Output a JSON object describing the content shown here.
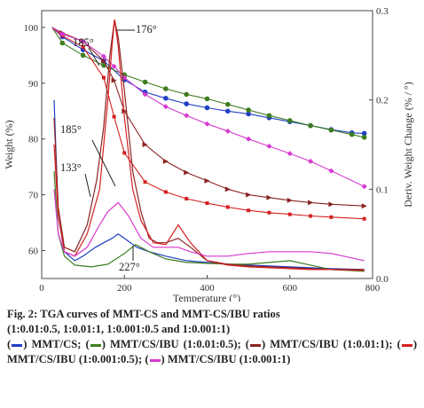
{
  "chart_data": {
    "type": "line",
    "xlabel": "Temperature (°)",
    "ylabel": "Weight (%)",
    "y2label": "Deriv. Weight Change (% / °)",
    "xlim": [
      0,
      800
    ],
    "ylim": [
      55,
      103
    ],
    "y2lim": [
      0,
      0.3
    ],
    "xticks": [
      "0",
      "200",
      "400",
      "600",
      "800"
    ],
    "yticks": [
      "60",
      "70",
      "80",
      "90",
      "100"
    ],
    "y2ticks": [
      "0.0",
      "0.1",
      "0.2",
      "0.3"
    ],
    "grid": false,
    "annotations": [
      "185°",
      "176°",
      "185°",
      "133°",
      "227°"
    ],
    "series": [
      {
        "color": "#1f3fc4",
        "axis": "weight",
        "marker": "circle",
        "x": [
          25,
          50,
          100,
          150,
          200,
          250,
          300,
          350,
          400,
          450,
          500,
          550,
          600,
          650,
          700,
          750,
          780
        ],
        "values": [
          100,
          98.3,
          96,
          94,
          90.6,
          88.4,
          87.3,
          86.3,
          85.6,
          85,
          84.5,
          83.8,
          83.1,
          82.4,
          81.7,
          81.1,
          81
        ]
      },
      {
        "color": "#3d7d1e",
        "axis": "weight",
        "marker": "circle",
        "x": [
          25,
          50,
          100,
          150,
          200,
          250,
          300,
          350,
          400,
          450,
          500,
          550,
          600,
          650,
          700,
          750,
          780
        ],
        "values": [
          100,
          97.2,
          95,
          93.2,
          91.5,
          90.2,
          89,
          88,
          87.2,
          86.2,
          85.2,
          84.2,
          83.3,
          82.4,
          81.6,
          80.8,
          80.3
        ]
      },
      {
        "color": "#8b2323",
        "axis": "weight",
        "marker": "triangle",
        "x": [
          25,
          50,
          100,
          150,
          175,
          200,
          250,
          300,
          350,
          400,
          450,
          500,
          550,
          600,
          650,
          700,
          780
        ],
        "values": [
          100,
          99,
          97.5,
          94,
          90.5,
          85,
          79,
          76,
          74,
          72.5,
          71,
          70,
          69.5,
          69,
          68.6,
          68.3,
          68
        ]
      },
      {
        "color": "#d42020",
        "axis": "weight",
        "marker": "square",
        "x": [
          25,
          50,
          100,
          150,
          175,
          200,
          250,
          300,
          350,
          400,
          450,
          500,
          550,
          600,
          650,
          700,
          780
        ],
        "values": [
          100,
          98.5,
          96.5,
          91,
          84,
          77.5,
          72.3,
          70.5,
          69.3,
          68.5,
          67.8,
          67.2,
          66.8,
          66.5,
          66.2,
          66,
          65.7
        ]
      },
      {
        "color": "#d63ad0",
        "axis": "weight",
        "marker": "diamond",
        "x": [
          25,
          50,
          100,
          150,
          175,
          200,
          250,
          300,
          350,
          400,
          450,
          500,
          550,
          600,
          650,
          700,
          780
        ],
        "values": [
          100,
          98.8,
          97.5,
          94.8,
          93,
          91,
          88,
          85.8,
          84.2,
          82.7,
          81.4,
          80,
          78.7,
          77.4,
          76,
          74.3,
          71.5
        ]
      },
      {
        "color": "#1f3fc4",
        "axis": "deriv",
        "x": [
          30,
          40,
          55,
          80,
          100,
          130,
          150,
          170,
          185,
          200,
          230,
          260,
          300,
          350,
          400,
          450,
          500,
          550,
          600,
          650,
          700,
          780
        ],
        "values": [
          0.2,
          0.07,
          0.03,
          0.02,
          0.025,
          0.035,
          0.04,
          0.045,
          0.05,
          0.045,
          0.035,
          0.03,
          0.025,
          0.02,
          0.018,
          0.016,
          0.015,
          0.014,
          0.013,
          0.012,
          0.011,
          0.01
        ]
      },
      {
        "color": "#3d7d1e",
        "axis": "deriv",
        "x": [
          30,
          40,
          55,
          80,
          120,
          160,
          200,
          227,
          260,
          300,
          350,
          400,
          450,
          500,
          550,
          600,
          650,
          700,
          780
        ],
        "values": [
          0.12,
          0.05,
          0.025,
          0.015,
          0.013,
          0.016,
          0.028,
          0.038,
          0.03,
          0.022,
          0.018,
          0.017,
          0.016,
          0.016,
          0.018,
          0.02,
          0.015,
          0.01,
          0.008
        ]
      },
      {
        "color": "#8b2323",
        "axis": "deriv",
        "x": [
          30,
          40,
          55,
          80,
          110,
          133,
          150,
          165,
          176,
          185,
          200,
          220,
          240,
          260,
          280,
          300,
          330,
          360,
          400,
          450,
          500,
          550,
          600,
          650,
          700,
          780
        ],
        "values": [
          0.18,
          0.08,
          0.035,
          0.03,
          0.06,
          0.11,
          0.17,
          0.25,
          0.29,
          0.27,
          0.21,
          0.12,
          0.075,
          0.045,
          0.04,
          0.04,
          0.045,
          0.035,
          0.02,
          0.016,
          0.014,
          0.013,
          0.012,
          0.011,
          0.01,
          0.01
        ]
      },
      {
        "color": "#d42020",
        "axis": "deriv",
        "x": [
          30,
          40,
          55,
          80,
          110,
          140,
          160,
          170,
          176,
          185,
          200,
          220,
          240,
          270,
          300,
          330,
          360,
          400,
          450,
          500,
          550,
          600,
          650,
          700,
          780
        ],
        "values": [
          0.15,
          0.07,
          0.03,
          0.025,
          0.05,
          0.1,
          0.2,
          0.26,
          0.29,
          0.26,
          0.18,
          0.1,
          0.065,
          0.04,
          0.038,
          0.06,
          0.04,
          0.02,
          0.015,
          0.013,
          0.012,
          0.011,
          0.01,
          0.01,
          0.009
        ]
      },
      {
        "color": "#d63ad0",
        "axis": "deriv",
        "x": [
          30,
          40,
          55,
          80,
          110,
          140,
          160,
          185,
          210,
          240,
          270,
          300,
          330,
          360,
          400,
          450,
          500,
          550,
          600,
          650,
          700,
          740,
          780
        ],
        "values": [
          0.1,
          0.05,
          0.03,
          0.025,
          0.035,
          0.06,
          0.075,
          0.085,
          0.07,
          0.045,
          0.035,
          0.035,
          0.035,
          0.03,
          0.025,
          0.025,
          0.028,
          0.03,
          0.03,
          0.03,
          0.028,
          0.024,
          0.02
        ]
      }
    ]
  },
  "caption": {
    "line1": "Fig. 2: TGA curves of MMT-CS and MMT-CS/IBU ratios",
    "line2": "(1:0.01:0.5, 1:0.01:1, 1:0.001:0.5 and 1:0.001:1)",
    "legend": [
      {
        "color": "#1f3fc4",
        "label": "MMT/CS;"
      },
      {
        "color": "#3d7d1e",
        "label": "MMT/CS/IBU (1:0.01:0.5);"
      },
      {
        "color": "#8b2323",
        "label": "MMT/CS/IBU (1:0.01:1);"
      },
      {
        "color": "#d42020",
        "label": "MMT/CS/IBU (1:0.001:0.5);"
      },
      {
        "color": "#d63ad0",
        "label": "MMT/CS/IBU (1:0.001:1)"
      }
    ]
  }
}
